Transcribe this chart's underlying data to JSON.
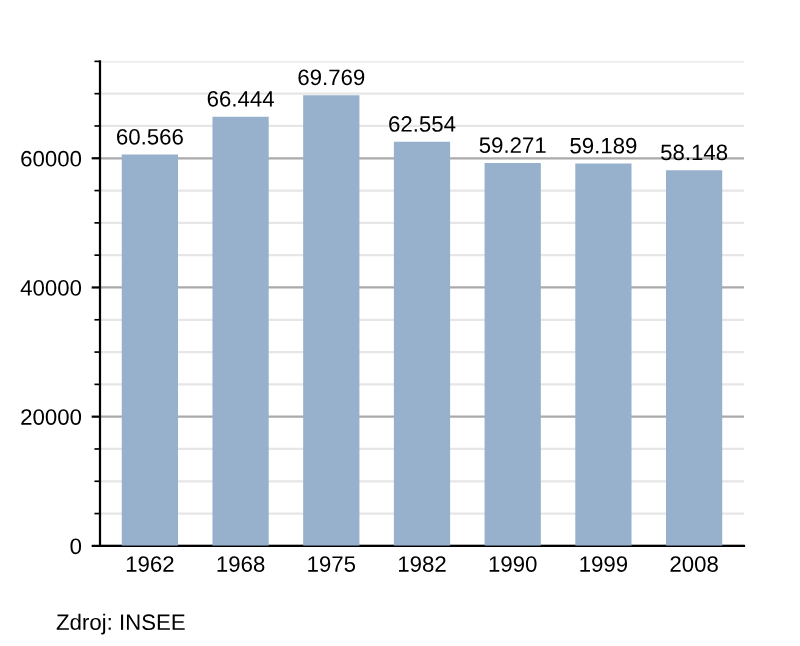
{
  "chart_data": {
    "type": "bar",
    "categories": [
      "1962",
      "1968",
      "1975",
      "1982",
      "1990",
      "1999",
      "2008"
    ],
    "values": [
      60566,
      66444,
      69769,
      62554,
      59271,
      59189,
      58148
    ],
    "value_labels": [
      "60.566",
      "66.444",
      "69.769",
      "62.554",
      "59.271",
      "59.189",
      "58.148"
    ],
    "color": "#97b0cc",
    "ylim": [
      0,
      75000
    ],
    "yticks": [
      0,
      {
        "value": 5000,
        "label": null
      },
      {
        "value": 10000,
        "label": null
      },
      {
        "value": 15000,
        "label": null
      },
      20000,
      {
        "value": 25000,
        "label": null
      },
      {
        "value": 30000,
        "label": null
      },
      {
        "value": 35000,
        "label": null
      },
      40000,
      {
        "value": 45000,
        "label": null
      },
      {
        "value": 50000,
        "label": null
      },
      {
        "value": 55000,
        "label": null
      },
      60000,
      {
        "value": 65000,
        "label": null
      },
      {
        "value": 70000,
        "label": null
      },
      {
        "value": 75000,
        "label": null
      }
    ],
    "grid": "y",
    "annotations": [
      "Zdroj: INSEE"
    ]
  }
}
